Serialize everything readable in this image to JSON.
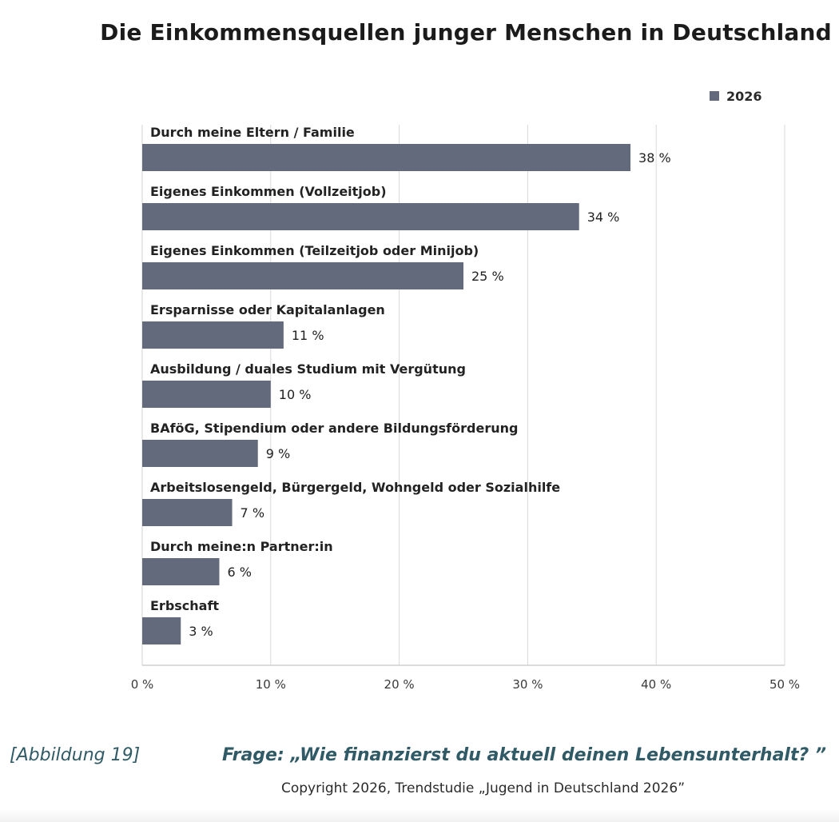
{
  "chart_data": {
    "type": "bar",
    "orientation": "horizontal",
    "title": "Die Einkommensquellen junger Menschen in Deutschland",
    "categories": [
      "Durch meine Eltern / Familie",
      "Eigenes Einkommen (Vollzeitjob)",
      "Eigenes Einkommen (Teilzeitjob oder Minijob)",
      "Ersparnisse oder Kapitalanlagen",
      "Ausbildung / duales Studium mit Vergütung",
      "BAföG, Stipendium oder andere Bildungsförderung",
      "Arbeitslosengeld, Bürgergeld, Wohngeld oder Sozialhilfe",
      "Durch meine:n Partner:in",
      "Erbschaft"
    ],
    "series": [
      {
        "name": "2026",
        "values": [
          38,
          34,
          25,
          11,
          10,
          9,
          7,
          6,
          3
        ]
      }
    ],
    "value_labels": [
      "38 %",
      "34 %",
      "25 %",
      "11 %",
      "10 %",
      "9 %",
      "7 %",
      "6 %",
      "3 %"
    ],
    "x_ticks": [
      "0 %",
      "10 %",
      "20 %",
      "30 %",
      "40 %",
      "50 %"
    ],
    "xlim": [
      0,
      50
    ],
    "grid": "vertical",
    "legend_position": "top-right",
    "bar_color": "#626a7c"
  },
  "footer": {
    "figure_number": "[Abbildung 19]",
    "question": "Frage: „Wie finanzierst du aktuell deinen Lebensunterhalt? ”",
    "copyright": "Copyright 2026, Trendstudie „Jugend in Deutschland 2026”"
  }
}
